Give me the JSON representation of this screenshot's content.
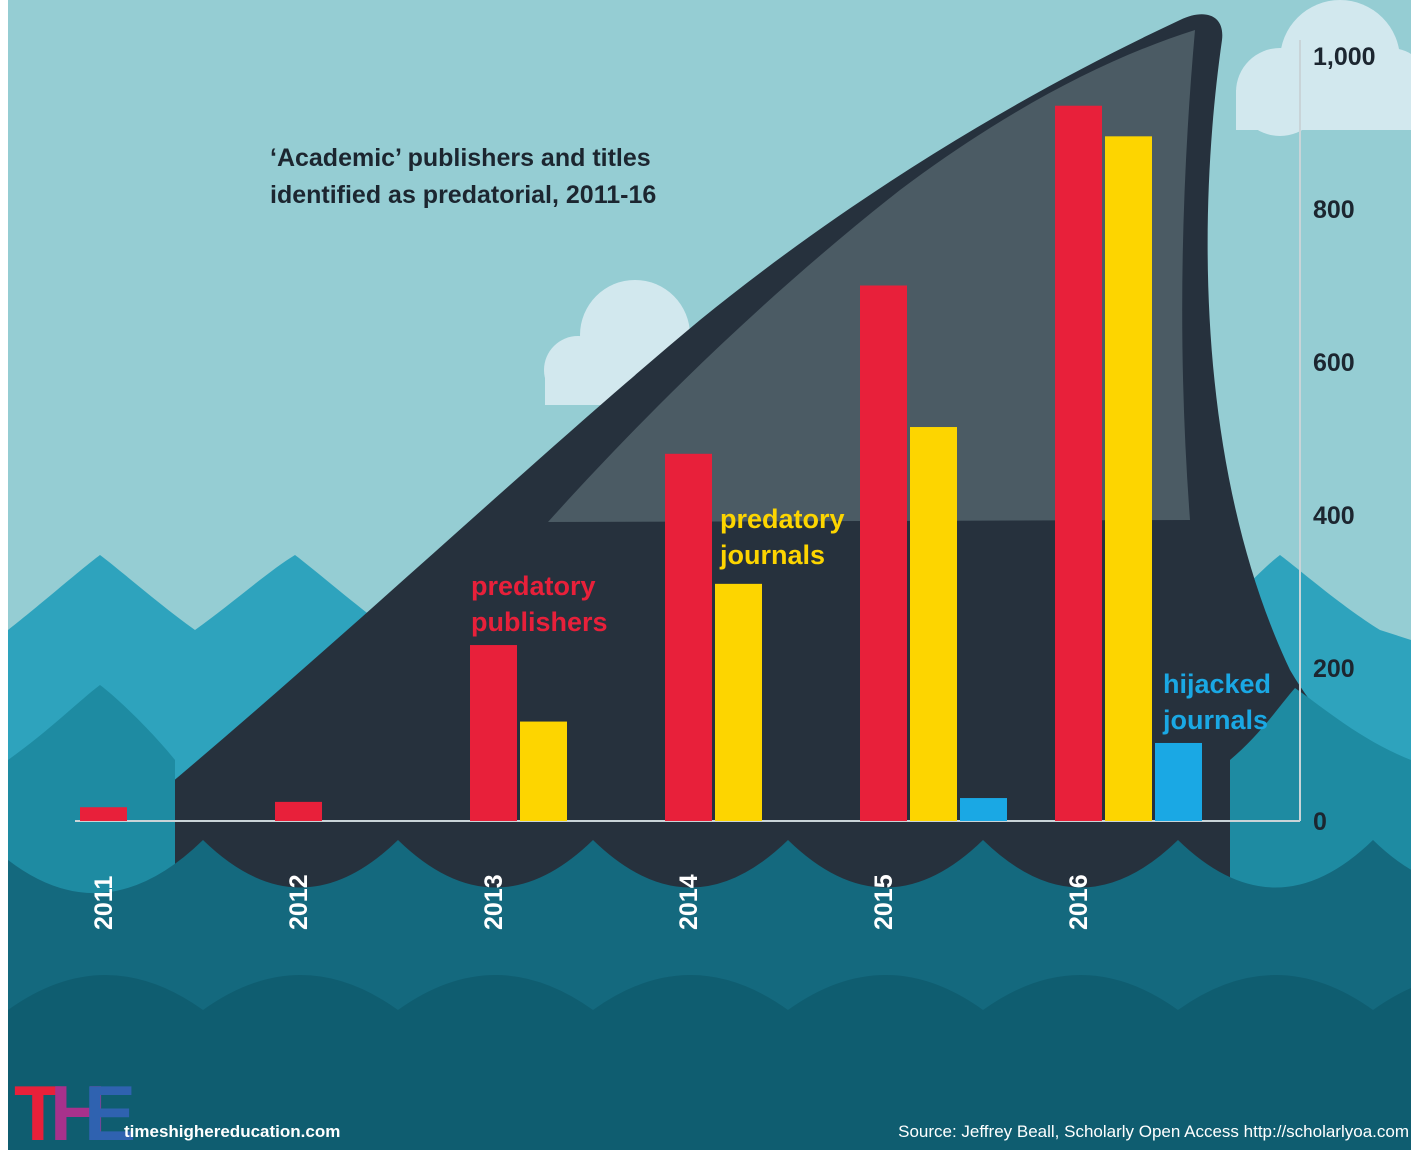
{
  "chart_data": {
    "type": "bar",
    "title": [
      "‘Academic’ publishers and titles",
      "identified as predatorial, 2011-16"
    ],
    "categories": [
      "2011",
      "2012",
      "2013",
      "2014",
      "2015",
      "2016"
    ],
    "series": [
      {
        "name": [
          "predatory",
          "publishers"
        ],
        "color": "#e8203a",
        "values": [
          18,
          25,
          230,
          480,
          700,
          935
        ]
      },
      {
        "name": [
          "predatory",
          "journals"
        ],
        "color": "#fdd500",
        "values": [
          null,
          null,
          130,
          310,
          515,
          895
        ]
      },
      {
        "name": [
          "hijacked",
          "journals"
        ],
        "color": "#1aa8e4",
        "values": [
          null,
          null,
          null,
          null,
          30,
          102
        ]
      }
    ],
    "yticks": [
      "0",
      "200",
      "400",
      "600",
      "800",
      "1,000"
    ],
    "ytick_values": [
      0,
      200,
      400,
      600,
      800,
      1000
    ],
    "ylim": [
      0,
      1000
    ],
    "grid": false,
    "xlabel": "",
    "ylabel": ""
  },
  "footer": {
    "logo": "THE",
    "site": "timeshighereducation.com",
    "source": "Source: Jeffrey Beall, Scholarly Open Access http://scholarlyoa.com"
  },
  "colors": {
    "sky": "#95cdd3",
    "cloud": "#d2e8ee",
    "fin_dark": "#26313d",
    "fin_inner": "#4b5b64",
    "wave_light": "#2ea3bd",
    "wave_mid": "#1e8ba2",
    "water_deep": "#14697e",
    "water_bottom": "#0f5d70"
  }
}
